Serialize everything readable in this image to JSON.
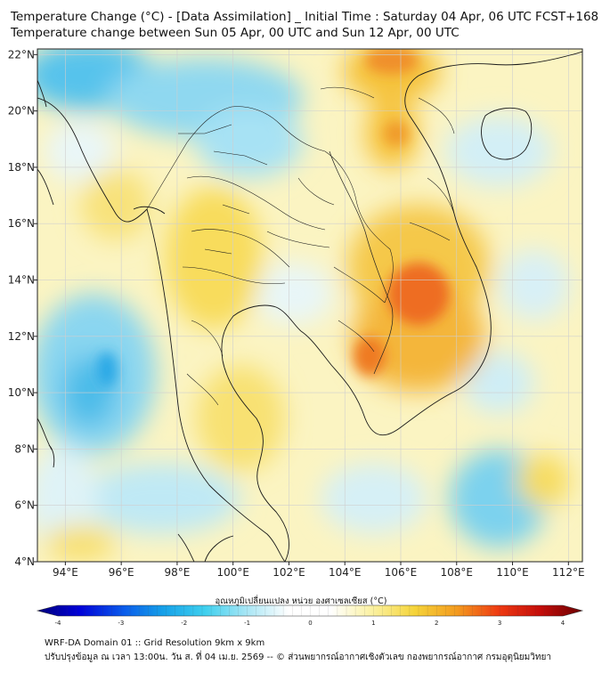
{
  "title_line1": "Temperature Change (°C) - [Data Assimilation] _ Initial Time : Saturday 04 Apr, 06 UTC FCST+168",
  "title_line2": "Temperature change between Sun 05 Apr, 00 UTC and Sun 12 Apr, 00 UTC",
  "map": {
    "lon_range": [
      93,
      112.5
    ],
    "lat_range": [
      4,
      22.2
    ],
    "lon_ticks": [
      "94°E",
      "96°E",
      "98°E",
      "100°E",
      "102°E",
      "104°E",
      "106°E",
      "108°E",
      "110°E",
      "112°E"
    ],
    "lat_ticks": [
      "4°N",
      "6°N",
      "8°N",
      "10°N",
      "12°N",
      "14°N",
      "16°N",
      "18°N",
      "20°N",
      "22°N"
    ],
    "grid": true,
    "colors": {
      "warm": "#f7d23c",
      "hot": "#ef6a1f",
      "cool": "#7fd3ee",
      "cold": "#2aa6e6",
      "neutral": "#f6f6f4",
      "border": "#1a1a1a"
    }
  },
  "colorbar": {
    "label": "อุณหภูมิเปลี่ยนแปลง หน่วย องศาเซลเซียส (°C)",
    "ticks": [
      "-4",
      "-3",
      "-2",
      "-1",
      "0",
      "1",
      "2",
      "3",
      "4"
    ],
    "range": [
      -4,
      4
    ],
    "stops": [
      "#00007a",
      "#0000d8",
      "#0a57ea",
      "#16a0e8",
      "#3fd0ee",
      "#a9e6f5",
      "#ffffff",
      "#ffffff",
      "#fbf1a0",
      "#f5d43a",
      "#f39b1f",
      "#ee3a12",
      "#c40d0a",
      "#6b0000"
    ]
  },
  "footer": {
    "line1": "WRF-DA Domain 01 :: Grid Resolution 9km x 9km",
    "line2": "ปรับปรุงข้อมูล ณ เวลา 13:00น. วัน ส. ที่ 04 เม.ย. 2569 -- © ส่วนพยากรณ์อากาศเชิงตัวเลข กองพยากรณ์อากาศ กรมอุตุนิยมวิทยา"
  }
}
